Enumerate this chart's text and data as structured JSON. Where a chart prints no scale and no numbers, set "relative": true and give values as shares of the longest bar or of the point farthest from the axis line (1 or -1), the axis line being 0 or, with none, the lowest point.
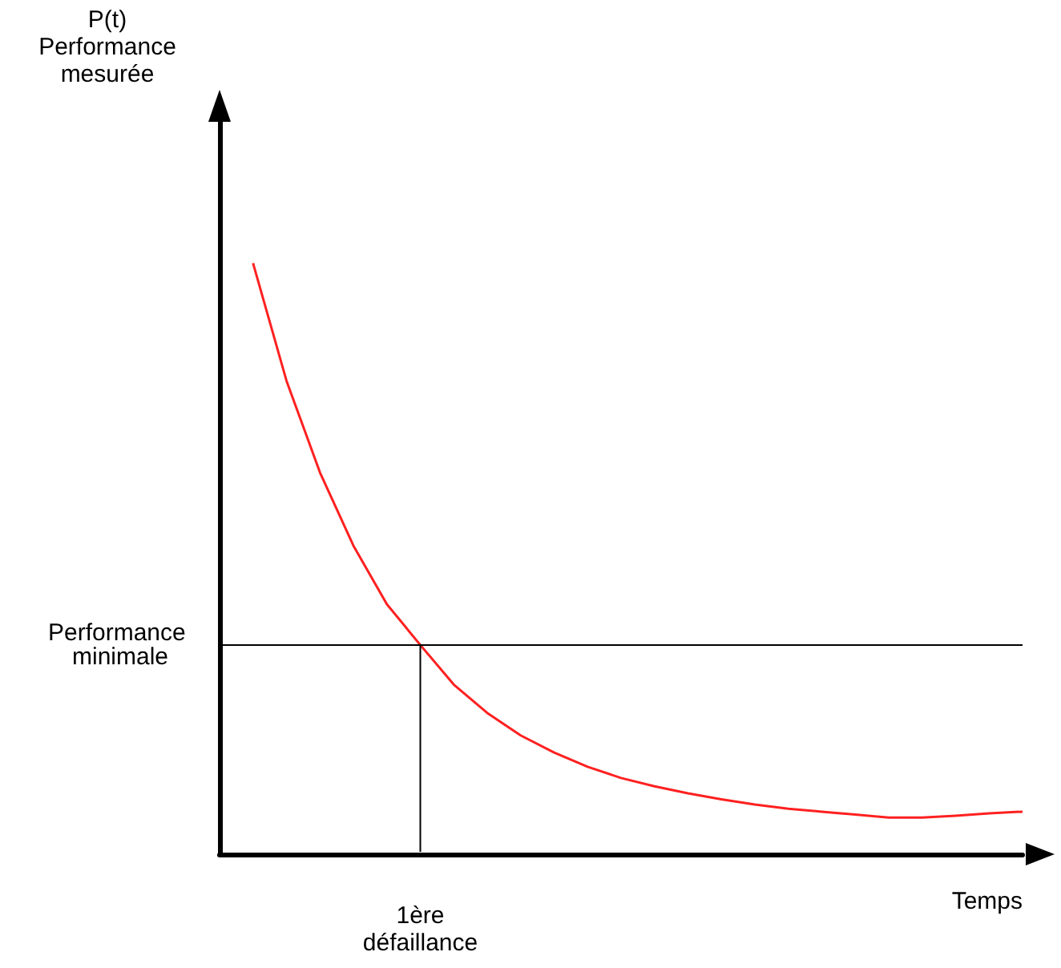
{
  "chart_data": {
    "type": "line",
    "relative": true,
    "xlabel": "Temps",
    "categories": [
      null,
      null,
      null,
      null,
      null,
      null,
      null,
      null,
      null,
      null,
      null,
      null,
      null,
      null,
      null,
      null,
      null,
      null,
      null,
      null,
      null,
      null,
      null,
      null,
      null
    ],
    "series": [
      {
        "color": "#ff2020",
        "values": [
          null,
          1.0,
          0.801,
          0.646,
          0.522,
          0.423,
          0.354,
          0.287,
          0.239,
          0.201,
          0.172,
          0.148,
          0.129,
          0.115,
          0.103,
          0.093,
          0.084,
          0.077,
          0.072,
          0.067,
          0.062,
          0.062,
          0.065,
          0.069,
          0.072
        ]
      }
    ],
    "ref_lines": [
      {
        "axis": "y",
        "value": 0.354,
        "label": "Performance minimale",
        "color": "#000000"
      }
    ],
    "annotations": [
      "P(t) Performance mesurée",
      "1ère défaillance"
    ],
    "grid": false,
    "marker": "none",
    "line_style": "solid"
  }
}
